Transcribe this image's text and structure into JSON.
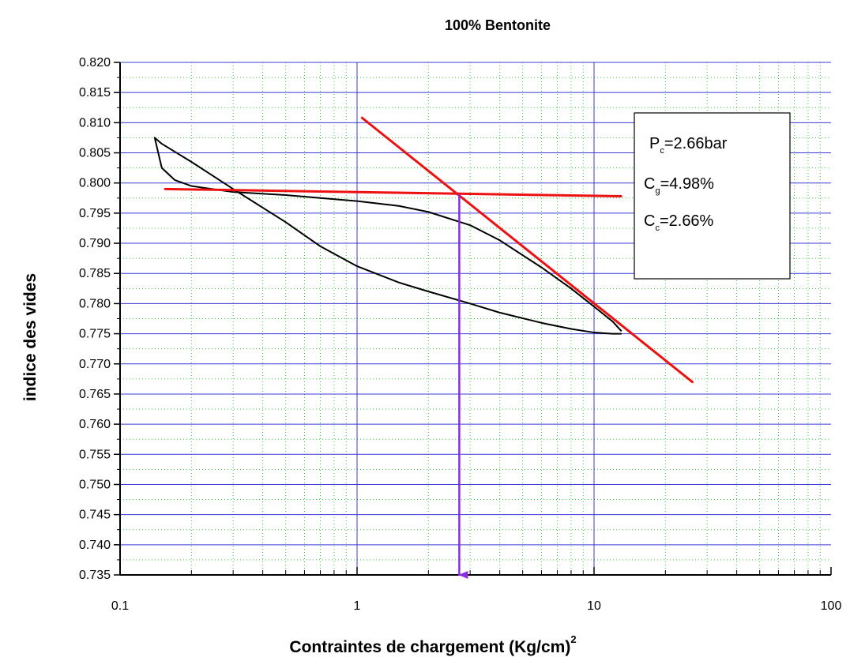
{
  "chart_data": {
    "type": "line",
    "title": "100% Bentonite",
    "xlabel": "Contraintes de chargement (Kg/cm)",
    "xlabel_superscript": "2",
    "ylabel": "indice des vides",
    "x_scale": "log",
    "xlim": [
      0.1,
      100
    ],
    "ylim": [
      0.735,
      0.82
    ],
    "x_ticks": [
      "0.1",
      "1",
      "10",
      "100"
    ],
    "y_ticks": [
      "0.820",
      "0.815",
      "0.810",
      "0.805",
      "0.800",
      "0.795",
      "0.790",
      "0.785",
      "0.780",
      "0.775",
      "0.770",
      "0.765",
      "0.760",
      "0.755",
      "0.750",
      "0.745",
      "0.740",
      "0.735"
    ],
    "grid": true,
    "colors": {
      "major_grid": "#3b3bd6",
      "minor_grid": "#33cc33",
      "curve": "#000000",
      "tangent": "#ee1111",
      "arrow": "#8a2be2"
    },
    "series": [
      {
        "role": "loading-curve",
        "x": [
          0.14,
          0.15,
          0.17,
          0.2,
          0.3,
          0.5,
          0.7,
          1.0,
          1.5,
          2.0,
          3.0,
          4.0,
          6.0,
          8.0,
          10.0,
          12.0,
          13.0
        ],
        "y": [
          0.8075,
          0.8025,
          0.8005,
          0.7995,
          0.7985,
          0.798,
          0.7975,
          0.797,
          0.7962,
          0.7952,
          0.793,
          0.7905,
          0.786,
          0.7825,
          0.7795,
          0.777,
          0.7755
        ]
      },
      {
        "role": "unloading-curve",
        "x": [
          13.0,
          12.0,
          10.0,
          8.0,
          6.0,
          4.0,
          3.0,
          2.0,
          1.5,
          1.0,
          0.7,
          0.5,
          0.3,
          0.2,
          0.15,
          0.14
        ],
        "y": [
          0.775,
          0.775,
          0.7752,
          0.7758,
          0.7768,
          0.7785,
          0.78,
          0.782,
          0.7835,
          0.7862,
          0.7895,
          0.7935,
          0.799,
          0.8035,
          0.8065,
          0.8075
        ]
      },
      {
        "role": "horizontal-tangent",
        "x": [
          0.155,
          13.0
        ],
        "y": [
          0.799,
          0.7978
        ]
      },
      {
        "role": "compression-line",
        "x": [
          1.05,
          26.0
        ],
        "y": [
          0.8108,
          0.767
        ]
      },
      {
        "role": "preconsolidation-arrow",
        "x": [
          2.7,
          2.7
        ],
        "y": [
          0.798,
          0.735
        ]
      }
    ],
    "annotations": [
      {
        "main": "P",
        "sub": "c",
        "rest": "=2.66bar"
      },
      {
        "main": "C",
        "sub": "g",
        "rest": "=4.98%"
      },
      {
        "main": "C",
        "sub": "c",
        "rest": "=2.66%"
      }
    ]
  }
}
